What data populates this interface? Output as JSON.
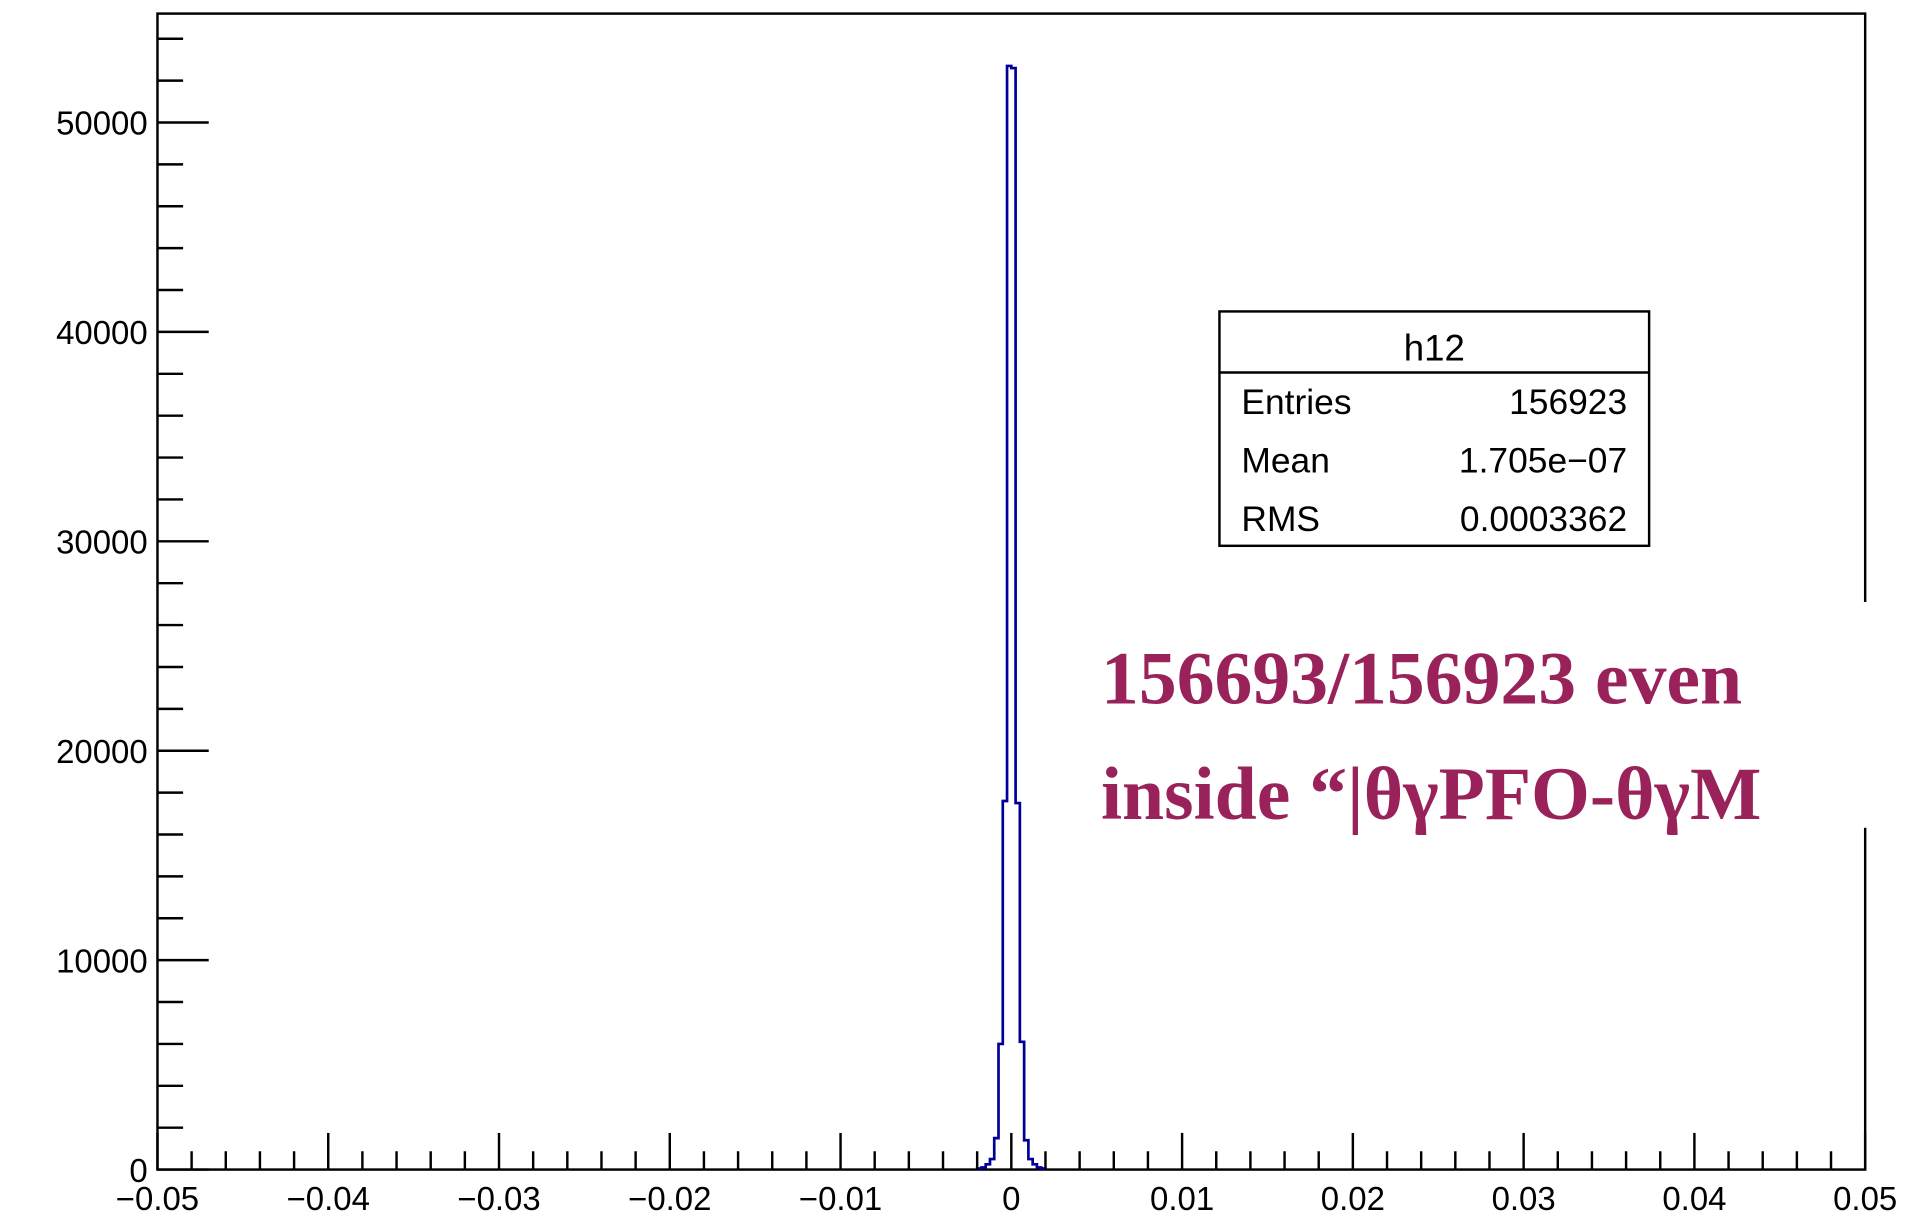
{
  "chart_data": {
    "type": "histogram",
    "bins": [
      -0.002,
      -0.00175,
      -0.0015,
      -0.00125,
      -0.001,
      -0.00075,
      -0.0005,
      -0.00025,
      0,
      0.00025,
      0.0005,
      0.00075,
      0.001,
      0.00125,
      0.0015,
      0.00175,
      0.002
    ],
    "values": [
      50,
      100,
      250,
      500,
      1500,
      6000,
      17600,
      52700,
      52600,
      17500,
      6100,
      1400,
      500,
      250,
      100,
      50
    ],
    "color": "#000099",
    "xlim": [
      -0.05,
      0.05
    ],
    "xticks": [
      {
        "value": -0.05,
        "label": "−0.05"
      },
      {
        "value": -0.04,
        "label": "−0.04"
      },
      {
        "value": -0.03,
        "label": "−0.03"
      },
      {
        "value": -0.02,
        "label": "−0.02"
      },
      {
        "value": -0.01,
        "label": "−0.01"
      },
      0,
      0.01,
      0.02,
      0.03,
      0.04,
      0.05
    ],
    "ylim": [
      0,
      55200
    ],
    "yticks": [
      0,
      10000,
      20000,
      30000,
      40000,
      50000
    ],
    "stats": {
      "title": "h12",
      "rows": [
        [
          "Entries",
          "156923"
        ],
        [
          "Mean",
          "1.705e−07"
        ],
        [
          "RMS",
          "0.0003362"
        ]
      ]
    },
    "annotation": [
      "156693/156923 even",
      "inside “|θγPFO-θγM"
    ]
  }
}
